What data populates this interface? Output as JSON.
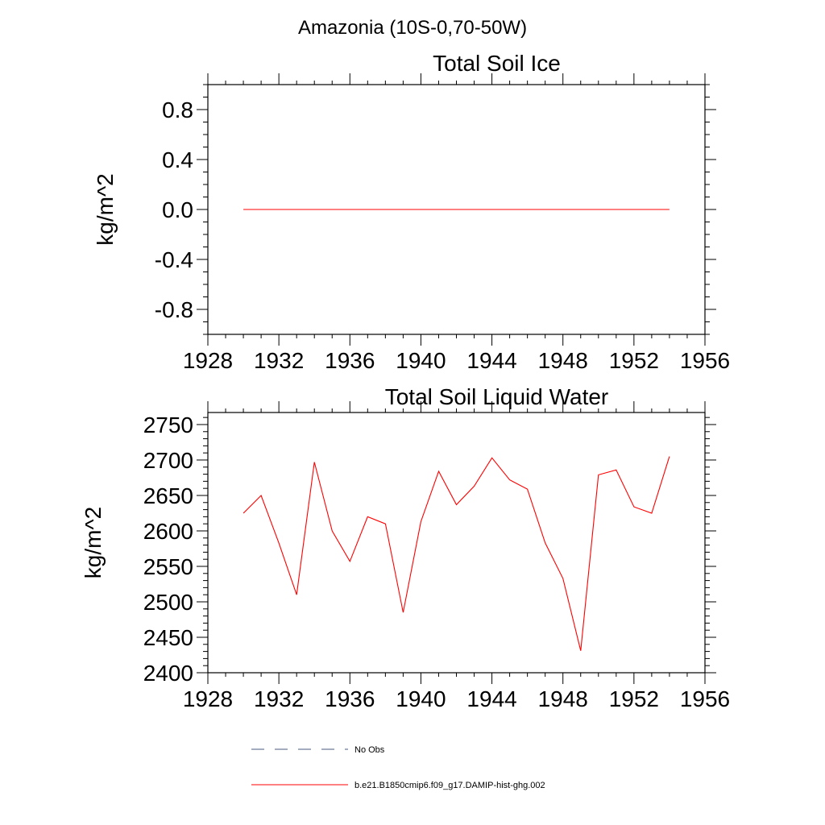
{
  "figure_title": "Amazonia (10S-0,70-50W)",
  "legend": [
    {
      "label": "No Obs",
      "color": "#4a5a80",
      "dash": "dashed"
    },
    {
      "label": "b.e21.B1850cmip6.f09_g17.DAMIP-hist-ghg.002",
      "color": "#ff0000",
      "dash": "solid"
    }
  ],
  "chart_data": [
    {
      "type": "line",
      "title": "Total Soil Ice",
      "ylabel": "kg/m^2",
      "xlabel": "",
      "xlim": [
        1928,
        1956
      ],
      "ylim": [
        -1.0,
        1.0
      ],
      "xticks": [
        1928,
        1932,
        1936,
        1940,
        1944,
        1948,
        1952,
        1956
      ],
      "yticks": [
        -0.8,
        -0.4,
        0.0,
        0.4,
        0.8
      ],
      "ytick_labels": [
        "-0.8",
        "-0.4",
        "0.0",
        "0.4",
        "0.8"
      ],
      "yminor_step": 0.1,
      "series": [
        {
          "name": "b.e21.B1850cmip6.f09_g17.DAMIP-hist-ghg.002",
          "color": "#ff0000",
          "x": [
            1930,
            1931,
            1932,
            1933,
            1934,
            1935,
            1936,
            1937,
            1938,
            1939,
            1940,
            1941,
            1942,
            1943,
            1944,
            1945,
            1946,
            1947,
            1948,
            1949,
            1950,
            1951,
            1952,
            1953,
            1954
          ],
          "values": [
            0,
            0,
            0,
            0,
            0,
            0,
            0,
            0,
            0,
            0,
            0,
            0,
            0,
            0,
            0,
            0,
            0,
            0,
            0,
            0,
            0,
            0,
            0,
            0,
            0
          ]
        }
      ]
    },
    {
      "type": "line",
      "title": "Total Soil Liquid Water",
      "ylabel": "kg/m^2",
      "xlabel": "",
      "xlim": [
        1928,
        1956
      ],
      "ylim": [
        2400,
        2767
      ],
      "xticks": [
        1928,
        1932,
        1936,
        1940,
        1944,
        1948,
        1952,
        1956
      ],
      "yticks": [
        2400,
        2450,
        2500,
        2550,
        2600,
        2650,
        2700,
        2750
      ],
      "ytick_labels": [
        "2400",
        "2450",
        "2500",
        "2550",
        "2600",
        "2650",
        "2700",
        "2750"
      ],
      "yminor_step": 10,
      "series": [
        {
          "name": "b.e21.B1850cmip6.f09_g17.DAMIP-hist-ghg.002",
          "color": "#ff0000",
          "x": [
            1930,
            1931,
            1932,
            1933,
            1934,
            1935,
            1936,
            1937,
            1938,
            1939,
            1940,
            1941,
            1942,
            1943,
            1944,
            1945,
            1946,
            1947,
            1948,
            1949,
            1950,
            1951,
            1952,
            1953,
            1954
          ],
          "values": [
            2625,
            2650,
            2583,
            2510,
            2697,
            2600,
            2557,
            2620,
            2610,
            2485,
            2613,
            2684,
            2637,
            2663,
            2703,
            2672,
            2659,
            2583,
            2533,
            2431,
            2679,
            2686,
            2634,
            2625,
            2705
          ]
        }
      ]
    }
  ]
}
